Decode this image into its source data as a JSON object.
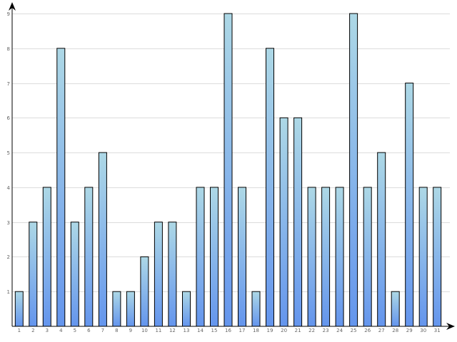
{
  "chart_data": {
    "type": "bar",
    "categories": [
      "1",
      "2",
      "3",
      "4",
      "5",
      "6",
      "7",
      "8",
      "9",
      "10",
      "11",
      "12",
      "13",
      "14",
      "15",
      "16",
      "17",
      "18",
      "19",
      "20",
      "21",
      "22",
      "23",
      "24",
      "25",
      "26",
      "27",
      "28",
      "29",
      "30",
      "31"
    ],
    "values": [
      1,
      3,
      4,
      8,
      3,
      4,
      5,
      1,
      1,
      2,
      3,
      3,
      1,
      4,
      4,
      9,
      4,
      1,
      8,
      6,
      6,
      4,
      4,
      4,
      9,
      4,
      5,
      1,
      7,
      4,
      4
    ],
    "y_ticks": [
      "1",
      "2",
      "3",
      "4",
      "5",
      "6",
      "7",
      "8",
      "9"
    ],
    "ylim": [
      0,
      9
    ],
    "grid": true,
    "legend": "none",
    "title": "",
    "xlabel": "",
    "ylabel": "",
    "colors": {
      "bar_top": "#add8e6",
      "bar_bottom": "#6495ed",
      "bar_border": "#000000",
      "grid": "#dcdcdc",
      "axis": "#000000",
      "tick_text": "#666666"
    }
  }
}
